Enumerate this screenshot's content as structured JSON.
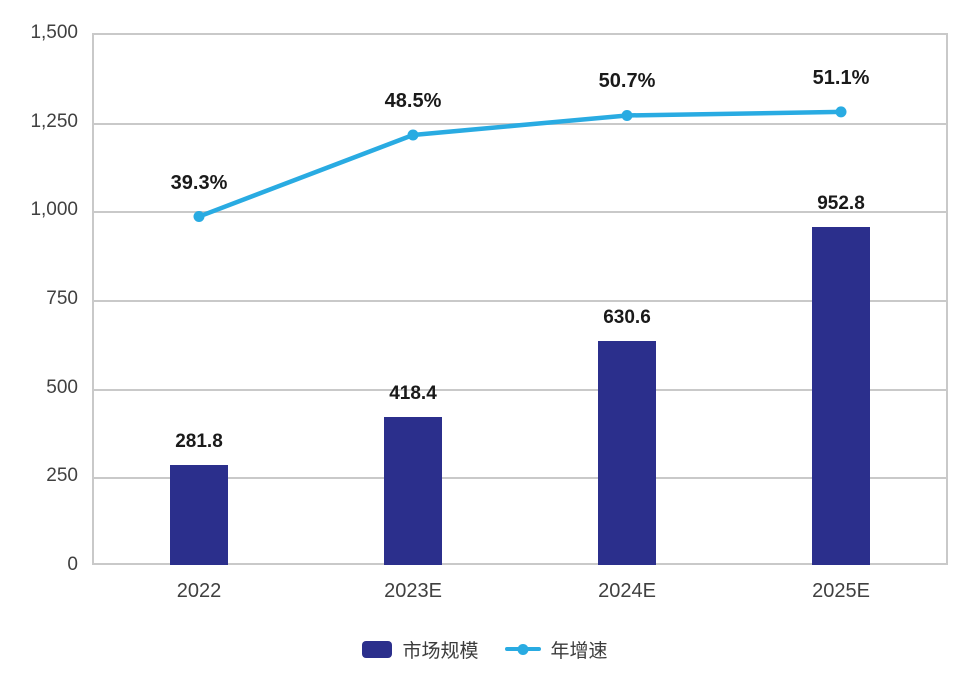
{
  "chart_data": {
    "type": "bar",
    "subtype": "combo-bar-line",
    "title": "",
    "xlabel": "",
    "ylabel": "",
    "categories": [
      "2022",
      "2023E",
      "2024E",
      "2025E"
    ],
    "series": [
      {
        "name": "市场规模",
        "type": "bar",
        "axis": "left",
        "values": [
          281.8,
          418.4,
          630.6,
          952.8
        ],
        "labels": [
          "281.8",
          "418.4",
          "630.6",
          "952.8"
        ],
        "color": "#2b2f8c"
      },
      {
        "name": "年增速",
        "type": "line",
        "axis": "right-hidden",
        "values": [
          39.3,
          48.5,
          50.7,
          51.1
        ],
        "labels": [
          "39.3%",
          "48.5%",
          "50.7%",
          "51.1%"
        ],
        "color": "#29abe2"
      }
    ],
    "left_axis": {
      "min": 0,
      "max": 1500,
      "tick_interval": 250,
      "tick_labels": [
        "0",
        "250",
        "500",
        "750",
        "1,000",
        "1,250",
        "1,500"
      ]
    },
    "line_axis_hint": {
      "min": 0,
      "max": 60,
      "visible": false
    },
    "grid": "horizontal",
    "plot_border": true,
    "legend_position": "bottom-center",
    "colors": {
      "bar": "#2b2f8c",
      "line": "#29abe2",
      "gridline": "#c9c9c9",
      "axis_text": "#404040",
      "data_label_text": "#1a1a1a",
      "background": "#ffffff"
    }
  }
}
